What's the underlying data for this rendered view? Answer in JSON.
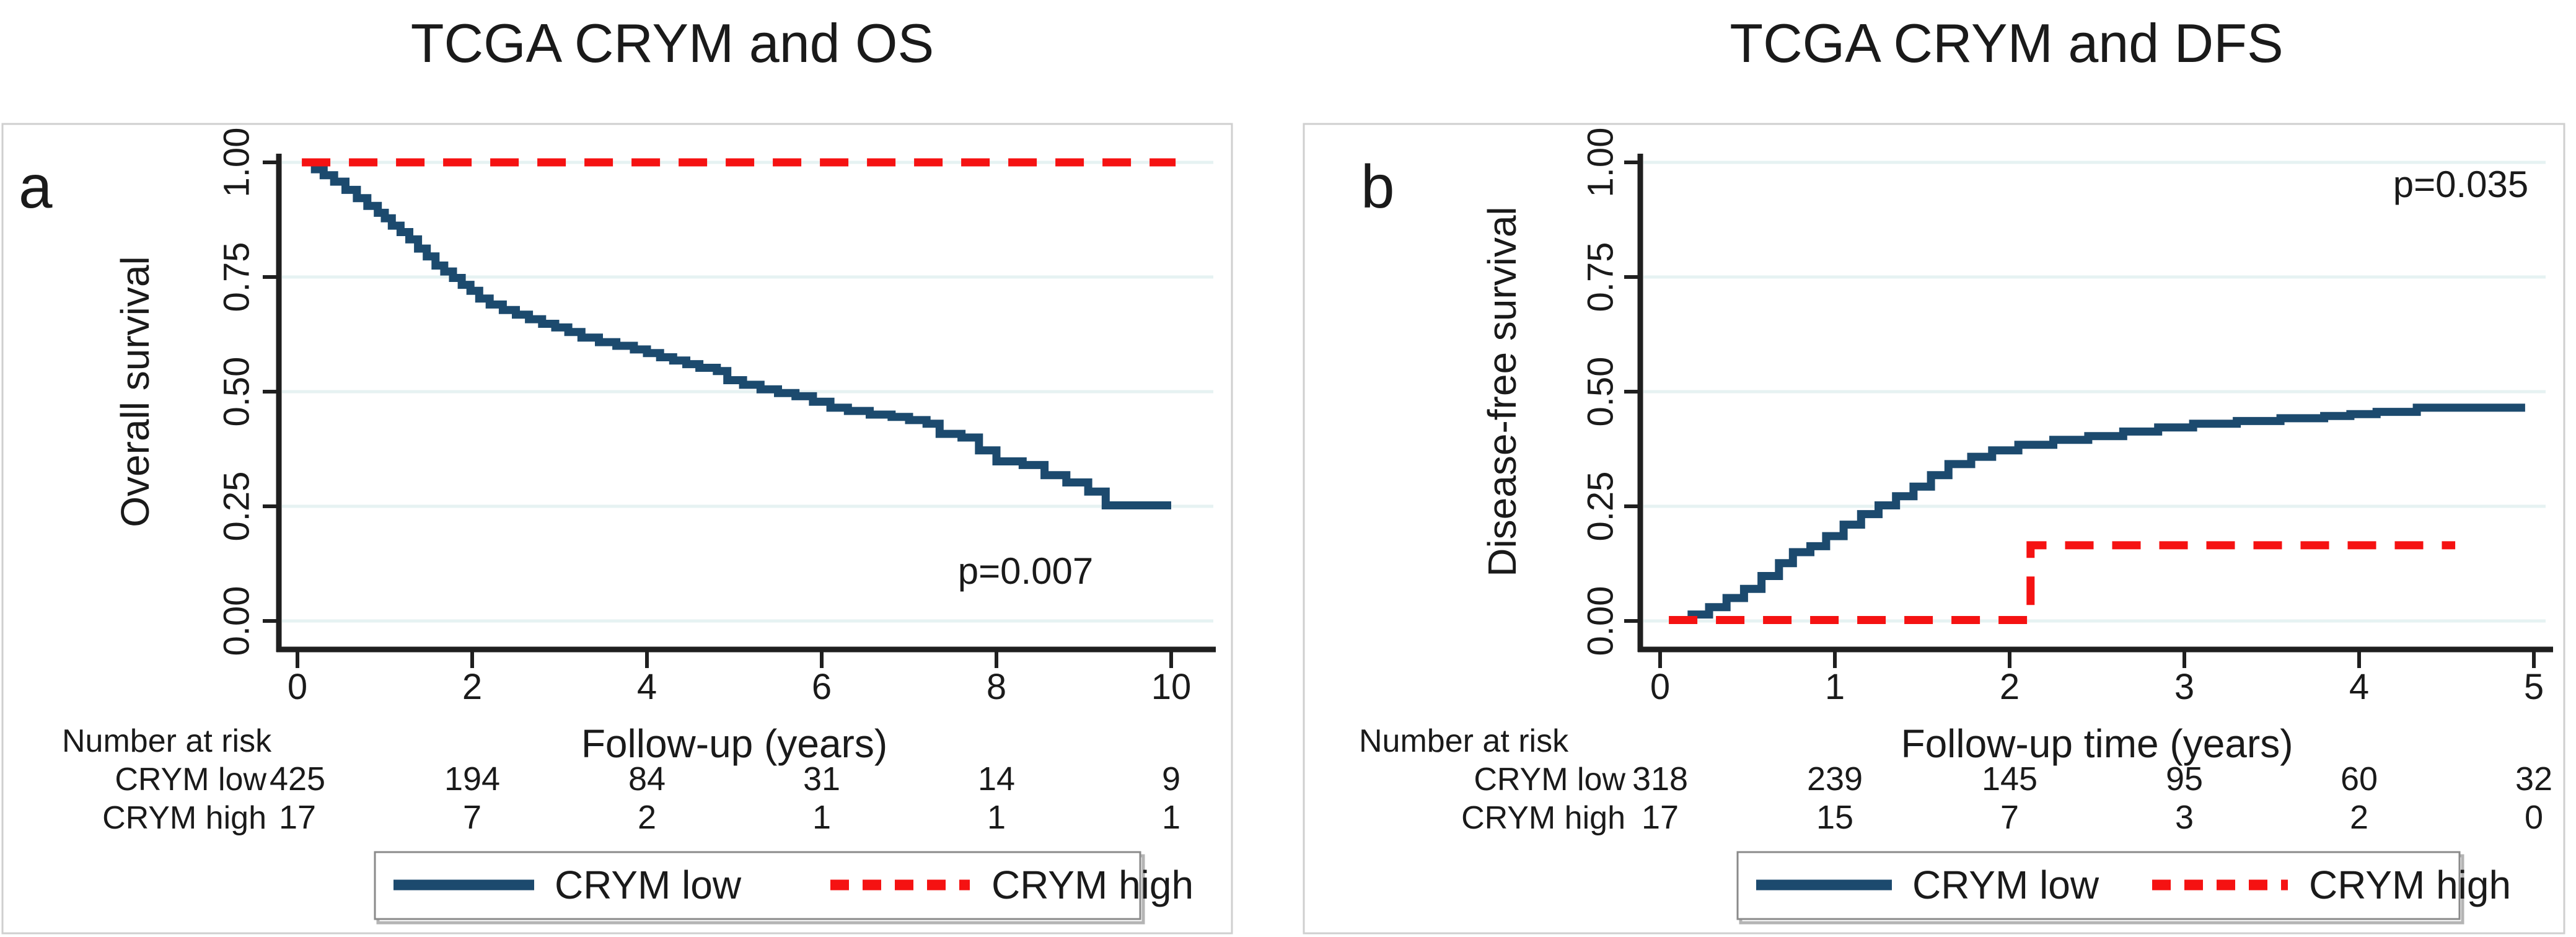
{
  "figure": {
    "background": "#ffffff",
    "panel_border_color": "#cfcfcf",
    "grid_color": "#e6f2f2",
    "axis_color": "#1f1f1f",
    "text_color": "#1a1a1a",
    "legend_border_color": "#8a8a8a",
    "legend_shadow_color": "#b4b4b4"
  },
  "chart_data": [
    {
      "type": "line",
      "panel_letter": "a",
      "title": "TCGA CRYM and OS",
      "xlabel": "Follow-up (years)",
      "ylabel": "Overall survival",
      "p_value": "p=0.007",
      "xlim": [
        0,
        10
      ],
      "ylim": [
        0,
        1
      ],
      "x_ticks": [
        0,
        2,
        4,
        6,
        8,
        10
      ],
      "y_ticks": [
        "0.00",
        "0.25",
        "0.50",
        "0.75",
        "1.00"
      ],
      "grid": true,
      "legend_position": "bottom",
      "series": [
        {
          "name": "CRYM low",
          "color": "#1c4a6e",
          "line_style": "solid",
          "step": true,
          "points": [
            [
              0.08,
              1.0
            ],
            [
              0.2,
              0.985
            ],
            [
              0.3,
              0.972
            ],
            [
              0.42,
              0.958
            ],
            [
              0.55,
              0.94
            ],
            [
              0.68,
              0.922
            ],
            [
              0.8,
              0.905
            ],
            [
              0.92,
              0.89
            ],
            [
              1.0,
              0.878
            ],
            [
              1.08,
              0.862
            ],
            [
              1.18,
              0.848
            ],
            [
              1.28,
              0.832
            ],
            [
              1.38,
              0.812
            ],
            [
              1.48,
              0.795
            ],
            [
              1.58,
              0.775
            ],
            [
              1.68,
              0.762
            ],
            [
              1.78,
              0.748
            ],
            [
              1.88,
              0.733
            ],
            [
              1.98,
              0.72
            ],
            [
              2.08,
              0.703
            ],
            [
              2.2,
              0.69
            ],
            [
              2.35,
              0.678
            ],
            [
              2.5,
              0.668
            ],
            [
              2.65,
              0.658
            ],
            [
              2.8,
              0.648
            ],
            [
              2.95,
              0.64
            ],
            [
              3.1,
              0.63
            ],
            [
              3.25,
              0.618
            ],
            [
              3.45,
              0.608
            ],
            [
              3.65,
              0.6
            ],
            [
              3.85,
              0.592
            ],
            [
              4.0,
              0.584
            ],
            [
              4.15,
              0.575
            ],
            [
              4.3,
              0.568
            ],
            [
              4.45,
              0.56
            ],
            [
              4.6,
              0.552
            ],
            [
              4.8,
              0.545
            ],
            [
              4.92,
              0.525
            ],
            [
              5.1,
              0.515
            ],
            [
              5.3,
              0.505
            ],
            [
              5.5,
              0.497
            ],
            [
              5.7,
              0.49
            ],
            [
              5.9,
              0.478
            ],
            [
              6.1,
              0.465
            ],
            [
              6.3,
              0.458
            ],
            [
              6.55,
              0.45
            ],
            [
              6.8,
              0.445
            ],
            [
              7.0,
              0.438
            ],
            [
              7.2,
              0.43
            ],
            [
              7.35,
              0.408
            ],
            [
              7.6,
              0.4
            ],
            [
              7.8,
              0.372
            ],
            [
              8.0,
              0.348
            ],
            [
              8.3,
              0.34
            ],
            [
              8.55,
              0.318
            ],
            [
              8.8,
              0.302
            ],
            [
              9.05,
              0.282
            ],
            [
              9.25,
              0.252
            ],
            [
              10.0,
              0.252
            ]
          ]
        },
        {
          "name": "CRYM high",
          "color": "#f51212",
          "line_style": "dashed",
          "step": true,
          "points": [
            [
              0.05,
              1.0
            ],
            [
              10.05,
              1.0
            ]
          ]
        }
      ],
      "number_at_risk": {
        "header": "Number at risk",
        "time_points": [
          0,
          2,
          4,
          6,
          8,
          10
        ],
        "rows": [
          {
            "name": "CRYM low",
            "values": [
              "425",
              "194",
              "84",
              "31",
              "14",
              "9"
            ]
          },
          {
            "name": "CRYM high",
            "values": [
              "17",
              "7",
              "2",
              "1",
              "1",
              "1"
            ]
          }
        ]
      }
    },
    {
      "type": "line",
      "panel_letter": "b",
      "title": "TCGA CRYM and DFS",
      "xlabel": "Follow-up time (years)",
      "ylabel": "Disease-free survival",
      "p_value": "p=0.035",
      "xlim": [
        0,
        5
      ],
      "ylim": [
        0,
        1
      ],
      "x_ticks": [
        0,
        1,
        2,
        3,
        4,
        5
      ],
      "y_ticks": [
        "0.00",
        "0.25",
        "0.50",
        "0.75",
        "1.00"
      ],
      "grid": true,
      "legend_position": "bottom",
      "series": [
        {
          "name": "CRYM low",
          "color": "#1c4a6e",
          "line_style": "solid",
          "step": true,
          "points": [
            [
              0.08,
              0.002
            ],
            [
              0.18,
              0.014
            ],
            [
              0.28,
              0.03
            ],
            [
              0.38,
              0.05
            ],
            [
              0.48,
              0.07
            ],
            [
              0.58,
              0.098
            ],
            [
              0.68,
              0.126
            ],
            [
              0.76,
              0.15
            ],
            [
              0.86,
              0.163
            ],
            [
              0.95,
              0.185
            ],
            [
              1.05,
              0.21
            ],
            [
              1.15,
              0.233
            ],
            [
              1.25,
              0.252
            ],
            [
              1.35,
              0.272
            ],
            [
              1.45,
              0.293
            ],
            [
              1.55,
              0.318
            ],
            [
              1.65,
              0.342
            ],
            [
              1.78,
              0.358
            ],
            [
              1.9,
              0.372
            ],
            [
              2.05,
              0.384
            ],
            [
              2.25,
              0.395
            ],
            [
              2.45,
              0.403
            ],
            [
              2.65,
              0.413
            ],
            [
              2.85,
              0.422
            ],
            [
              3.05,
              0.43
            ],
            [
              3.3,
              0.436
            ],
            [
              3.55,
              0.442
            ],
            [
              3.8,
              0.447
            ],
            [
              3.95,
              0.451
            ],
            [
              4.1,
              0.456
            ],
            [
              4.33,
              0.465
            ],
            [
              4.95,
              0.465
            ]
          ]
        },
        {
          "name": "CRYM high",
          "color": "#f51212",
          "line_style": "dashed",
          "step": true,
          "points": [
            [
              0.05,
              0.002
            ],
            [
              2.12,
              0.002
            ],
            [
              2.12,
              0.165
            ],
            [
              4.55,
              0.165
            ]
          ]
        }
      ],
      "number_at_risk": {
        "header": "Number at risk",
        "time_points": [
          0,
          1,
          2,
          3,
          4,
          5
        ],
        "rows": [
          {
            "name": "CRYM low",
            "values": [
              "318",
              "239",
              "145",
              "95",
              "60",
              "32"
            ]
          },
          {
            "name": "CRYM high",
            "values": [
              "17",
              "15",
              "7",
              "3",
              "2",
              "0"
            ]
          }
        ]
      }
    }
  ]
}
